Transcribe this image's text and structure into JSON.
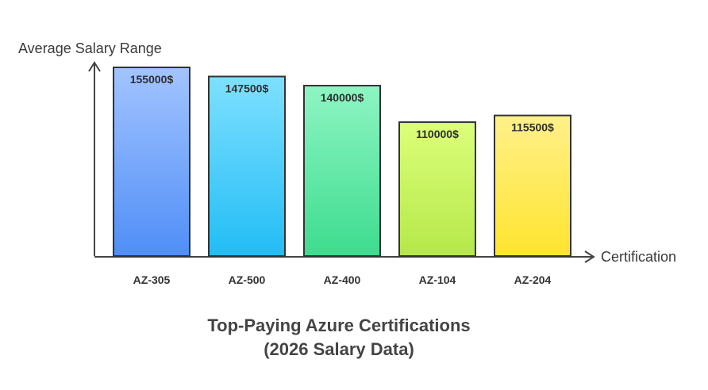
{
  "chart_data": {
    "type": "bar",
    "title_lines": [
      "Top-Paying Azure Certifications",
      "(2026 Salary Data)"
    ],
    "ylabel": "Average Salary Range",
    "xlabel": "Certification",
    "categories": [
      "AZ-305",
      "AZ-500",
      "AZ-400",
      "AZ-104",
      "AZ-204"
    ],
    "values": [
      155000,
      147500,
      140000,
      110000,
      115500
    ],
    "labels": [
      "155000$",
      "147500$",
      "140000$",
      "110000$",
      "115500$"
    ],
    "ylim": [
      0,
      155000
    ],
    "grid": false,
    "bar_colors": [
      [
        "#a3c4ff",
        "#4f8ef7"
      ],
      [
        "#7fe0ff",
        "#22bdf5"
      ],
      [
        "#8ef5c3",
        "#3ddc8e"
      ],
      [
        "#dcff7a",
        "#b5e84a"
      ],
      [
        "#fff08a",
        "#ffe52e"
      ]
    ]
  }
}
